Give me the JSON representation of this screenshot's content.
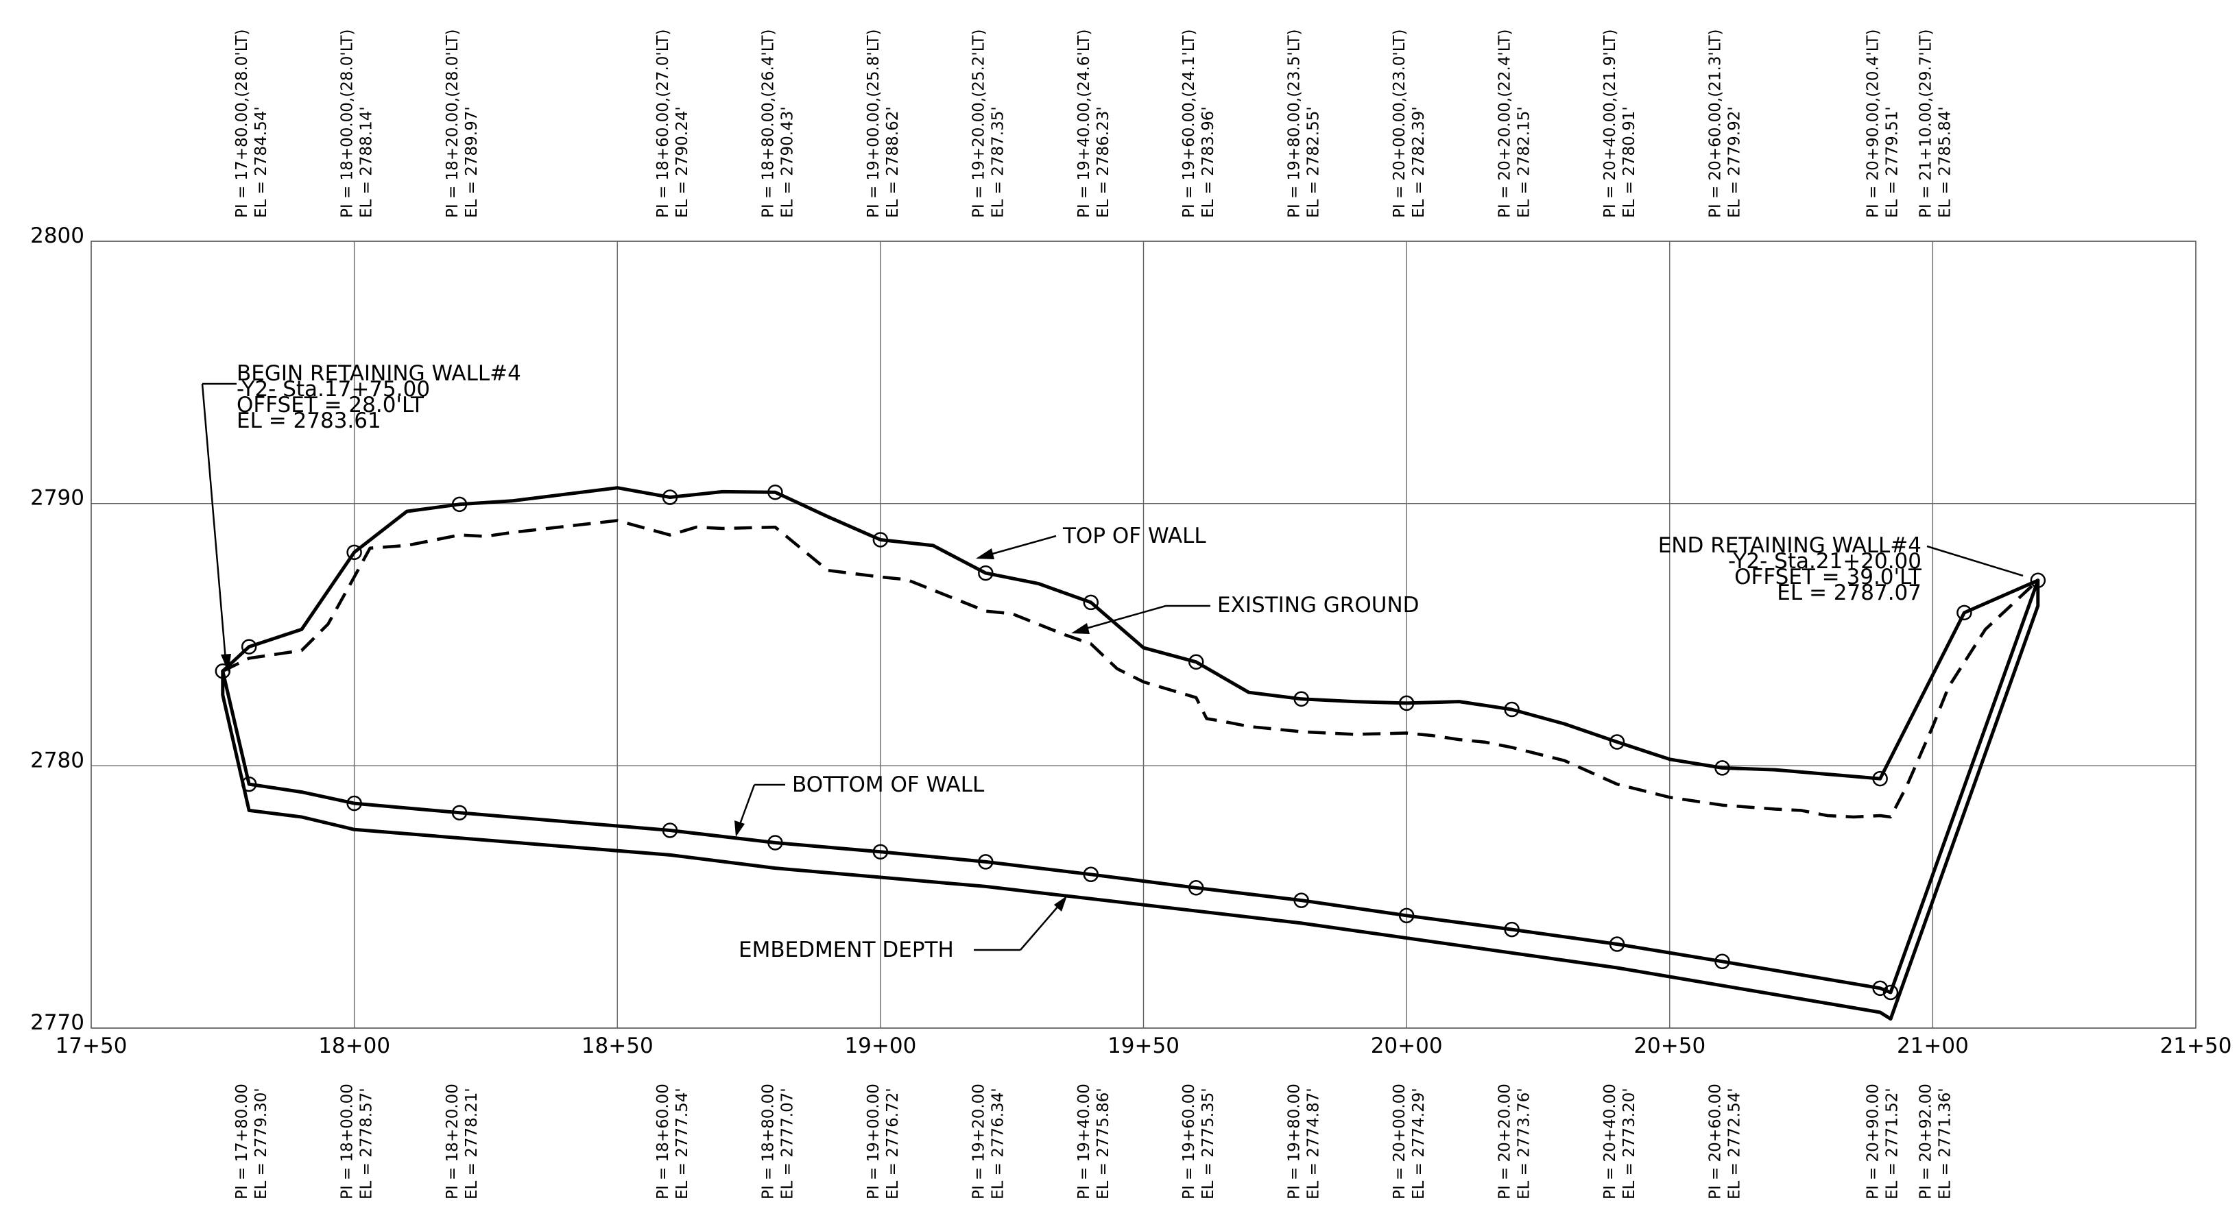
{
  "chart_data": {
    "type": "line",
    "xlim": [
      1750,
      2150
    ],
    "ylim": [
      2770,
      2800
    ],
    "grid": true,
    "x_tick_labels": [
      "17+50",
      "18+00",
      "18+50",
      "19+00",
      "19+50",
      "20+00",
      "20+50",
      "21+00",
      "21+50"
    ],
    "x_ticks": [
      1750,
      1800,
      1850,
      1900,
      1950,
      2000,
      2050,
      2100,
      2150
    ],
    "y_tick_labels": [
      "2770",
      "2780",
      "2790",
      "2800"
    ],
    "y_ticks": [
      2770,
      2780,
      2790,
      2800
    ],
    "series": [
      {
        "name": "TOP OF WALL",
        "style": "solid-thick",
        "x": [
          1775,
          1780,
          1790,
          1800,
          1810,
          1820,
          1830,
          1850,
          1860,
          1870,
          1880,
          1890,
          1900,
          1910,
          1920,
          1930,
          1940,
          1950,
          1960,
          1970,
          1980,
          1990,
          2000,
          2010,
          2020,
          2030,
          2040,
          2050,
          2060,
          2070,
          2090,
          2106,
          2120
        ],
        "y": [
          2783.61,
          2784.54,
          2785.2,
          2788.14,
          2789.7,
          2789.97,
          2790.1,
          2790.6,
          2790.24,
          2790.45,
          2790.43,
          2789.5,
          2788.62,
          2788.4,
          2787.35,
          2786.95,
          2786.23,
          2784.5,
          2783.96,
          2782.8,
          2782.55,
          2782.45,
          2782.39,
          2782.45,
          2782.15,
          2781.6,
          2780.91,
          2780.25,
          2779.92,
          2779.85,
          2779.51,
          2785.84,
          2787.07
        ]
      },
      {
        "name": "EXISTING GROUND",
        "style": "dashed",
        "x": [
          1775,
          1780,
          1790,
          1795,
          1800,
          1803,
          1810,
          1820,
          1825,
          1830,
          1850,
          1860,
          1865,
          1870,
          1880,
          1890,
          1900,
          1905,
          1910,
          1920,
          1925,
          1930,
          1935,
          1940,
          1945,
          1950,
          1960,
          1962,
          1965,
          1970,
          1980,
          1990,
          2000,
          2005,
          2010,
          2015,
          2020,
          2030,
          2040,
          2050,
          2060,
          2070,
          2075,
          2080,
          2085,
          2090,
          2092,
          2095,
          2100,
          2103,
          2110,
          2120
        ],
        "y": [
          2783.61,
          2784.1,
          2784.4,
          2785.4,
          2787.2,
          2788.3,
          2788.4,
          2788.8,
          2788.75,
          2788.9,
          2789.35,
          2788.8,
          2789.1,
          2789.05,
          2789.1,
          2787.45,
          2787.2,
          2787.1,
          2786.7,
          2785.9,
          2785.8,
          2785.4,
          2785.0,
          2784.65,
          2783.7,
          2783.2,
          2782.6,
          2781.8,
          2781.7,
          2781.5,
          2781.3,
          2781.2,
          2781.25,
          2781.15,
          2781.0,
          2780.9,
          2780.7,
          2780.2,
          2779.3,
          2778.8,
          2778.5,
          2778.35,
          2778.3,
          2778.1,
          2778.05,
          2778.1,
          2778.05,
          2779.2,
          2781.5,
          2783.0,
          2785.2,
          2787.07
        ]
      },
      {
        "name": "BOTTOM OF WALL",
        "style": "solid-thick",
        "x": [
          1775,
          1780,
          1790,
          1800,
          1820,
          1860,
          1880,
          1900,
          1920,
          1940,
          1960,
          1980,
          2000,
          2020,
          2040,
          2060,
          2090,
          2092,
          2120
        ],
        "y": [
          2783.61,
          2779.3,
          2779.0,
          2778.57,
          2778.21,
          2777.54,
          2777.07,
          2776.72,
          2776.34,
          2775.86,
          2775.35,
          2774.87,
          2774.29,
          2773.76,
          2773.2,
          2772.54,
          2771.52,
          2771.36,
          2787.07
        ]
      },
      {
        "name": "EMBEDMENT DEPTH",
        "style": "solid-thick",
        "x": [
          1775,
          1775,
          1780,
          1790,
          1800,
          1860,
          1880,
          1920,
          1980,
          2040,
          2090,
          2092,
          2120,
          2120
        ],
        "y": [
          2783.61,
          2782.7,
          2778.3,
          2778.05,
          2777.57,
          2776.6,
          2776.1,
          2775.4,
          2774.0,
          2772.3,
          2770.6,
          2770.35,
          2786.1,
          2787.07
        ]
      }
    ],
    "top_circles": [
      1775,
      1780,
      1800,
      1820,
      1860,
      1880,
      1900,
      1920,
      1940,
      1960,
      1980,
      2000,
      2020,
      2040,
      2060,
      2090,
      2106,
      2120
    ],
    "bottom_circles": [
      1780,
      1800,
      1820,
      1860,
      1880,
      1900,
      1920,
      1940,
      1960,
      1980,
      2000,
      2020,
      2040,
      2060,
      2090,
      2092
    ],
    "top_labels": [
      {
        "sta": 1780,
        "line1": "PI = 17+80.00,(28.0'LT)",
        "line2": "EL = 2784.54'"
      },
      {
        "sta": 1800,
        "line1": "PI = 18+00.00,(28.0'LT)",
        "line2": "EL = 2788.14'"
      },
      {
        "sta": 1820,
        "line1": "PI = 18+20.00,(28.0'LT)",
        "line2": "EL = 2789.97'"
      },
      {
        "sta": 1860,
        "line1": "PI = 18+60.00,(27.0'LT)",
        "line2": "EL = 2790.24'"
      },
      {
        "sta": 1880,
        "line1": "PI = 18+80.00,(26.4'LT)",
        "line2": "EL = 2790.43'"
      },
      {
        "sta": 1900,
        "line1": "PI = 19+00.00,(25.8'LT)",
        "line2": "EL = 2788.62'"
      },
      {
        "sta": 1920,
        "line1": "PI = 19+20.00,(25.2'LT)",
        "line2": "EL = 2787.35'"
      },
      {
        "sta": 1940,
        "line1": "PI = 19+40.00,(24.6'LT)",
        "line2": "EL = 2786.23'"
      },
      {
        "sta": 1960,
        "line1": "PI = 19+60.00,(24.1'LT)",
        "line2": "EL = 2783.96'"
      },
      {
        "sta": 1980,
        "line1": "PI = 19+80.00,(23.5'LT)",
        "line2": "EL = 2782.55'"
      },
      {
        "sta": 2000,
        "line1": "PI = 20+00.00,(23.0'LT)",
        "line2": "EL = 2782.39'"
      },
      {
        "sta": 2020,
        "line1": "PI = 20+20.00,(22.4'LT)",
        "line2": "EL = 2782.15'"
      },
      {
        "sta": 2040,
        "line1": "PI = 20+40.00,(21.9'LT)",
        "line2": "EL = 2780.91'"
      },
      {
        "sta": 2060,
        "line1": "PI = 20+60.00,(21.3'LT)",
        "line2": "EL = 2779.92'"
      },
      {
        "sta": 2090,
        "line1": "PI = 20+90.00,(20.4'LT)",
        "line2": "EL = 2779.51'"
      },
      {
        "sta": 2100,
        "line1": "PI = 21+10.00,(29.7'LT)",
        "line2": "EL = 2785.84'"
      }
    ],
    "bottom_labels": [
      {
        "sta": 1780,
        "line1": "PI = 17+80.00",
        "line2": "EL = 2779.30'"
      },
      {
        "sta": 1800,
        "line1": "PI = 18+00.00",
        "line2": "EL = 2778.57'"
      },
      {
        "sta": 1820,
        "line1": "PI = 18+20.00",
        "line2": "EL = 2778.21'"
      },
      {
        "sta": 1860,
        "line1": "PI = 18+60.00",
        "line2": "EL = 2777.54'"
      },
      {
        "sta": 1880,
        "line1": "PI = 18+80.00",
        "line2": "EL = 2777.07'"
      },
      {
        "sta": 1900,
        "line1": "PI = 19+00.00",
        "line2": "EL = 2776.72'"
      },
      {
        "sta": 1920,
        "line1": "PI = 19+20.00",
        "line2": "EL = 2776.34'"
      },
      {
        "sta": 1940,
        "line1": "PI = 19+40.00",
        "line2": "EL = 2775.86'"
      },
      {
        "sta": 1960,
        "line1": "PI = 19+60.00",
        "line2": "EL = 2775.35'"
      },
      {
        "sta": 1980,
        "line1": "PI = 19+80.00",
        "line2": "EL = 2774.87'"
      },
      {
        "sta": 2000,
        "line1": "PI = 20+00.00",
        "line2": "EL = 2774.29'"
      },
      {
        "sta": 2020,
        "line1": "PI = 20+20.00",
        "line2": "EL = 2773.76'"
      },
      {
        "sta": 2040,
        "line1": "PI = 20+40.00",
        "line2": "EL = 2773.20'"
      },
      {
        "sta": 2060,
        "line1": "PI = 20+60.00",
        "line2": "EL = 2772.54'"
      },
      {
        "sta": 2090,
        "line1": "PI = 20+90.00",
        "line2": "EL = 2771.52'"
      },
      {
        "sta": 2100,
        "line1": "PI = 20+92.00",
        "line2": "EL = 2771.36'"
      }
    ],
    "annotations": {
      "begin": [
        "BEGIN RETAINING WALL#4",
        "-Y2- Sta.17+75.00",
        "OFFSET = 28.0'LT",
        "EL = 2783.61"
      ],
      "end": [
        "END RETAINING WALL#4",
        "-Y2- Sta.21+20.00",
        "OFFSET = 39.0'LT",
        "EL = 2787.07"
      ],
      "top_of_wall": "TOP OF WALL",
      "existing_ground": "EXISTING GROUND",
      "bottom_of_wall": "BOTTOM OF WALL",
      "embedment_depth": "EMBEDMENT DEPTH"
    }
  }
}
